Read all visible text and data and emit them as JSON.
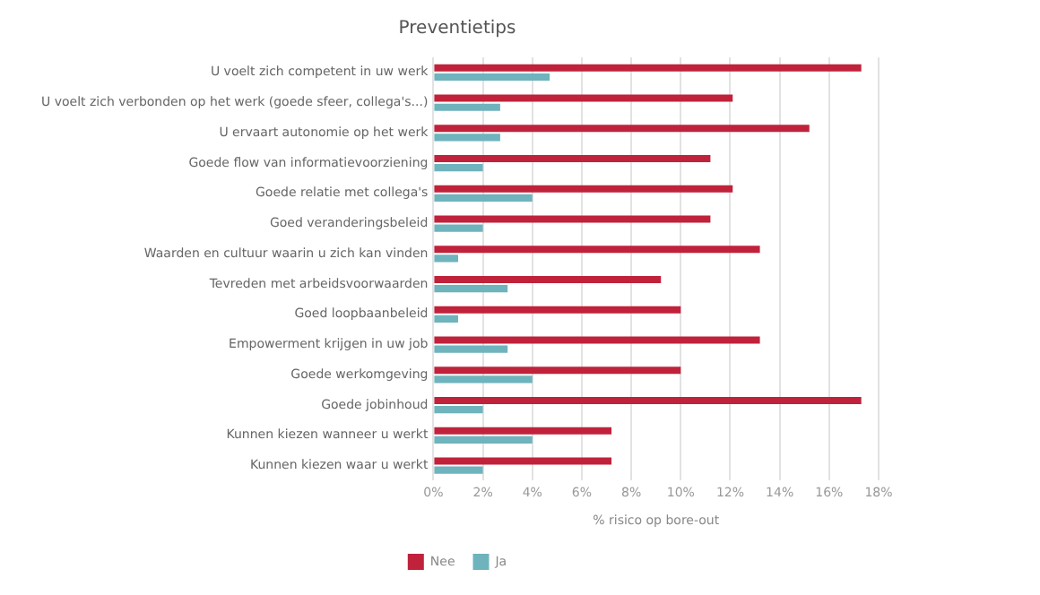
{
  "chart_data": {
    "type": "bar",
    "orientation": "horizontal",
    "title": "Preventietips",
    "xlabel": "% risico op bore-out",
    "categories": [
      "U voelt zich competent in uw werk",
      "U voelt zich verbonden op het werk (goede sfeer, collega's...)",
      "U ervaart autonomie op het werk",
      "Goede flow van informatievoorziening",
      "Goede relatie met collega's",
      "Goed veranderingsbeleid",
      "Waarden en cultuur waarin u zich kan vinden",
      "Tevreden met arbeidsvoorwaarden",
      "Goed loopbaanbeleid",
      "Empowerment krijgen in uw job",
      "Goede werkomgeving",
      "Goede jobinhoud",
      "Kunnen kiezen wanneer u werkt",
      "Kunnen kiezen waar u werkt"
    ],
    "series": [
      {
        "name": "Nee",
        "color": "#c0223b",
        "values": [
          17.3,
          12.1,
          15.2,
          11.2,
          12.1,
          11.2,
          13.2,
          9.2,
          10,
          13.2,
          10,
          17.3,
          7.2,
          7.2
        ]
      },
      {
        "name": "Ja",
        "color": "#6fb3bd",
        "values": [
          4.7,
          2.7,
          2.7,
          2,
          4,
          2,
          1,
          3,
          1,
          3,
          4,
          2,
          4,
          2
        ]
      }
    ],
    "xlim": [
      0,
      18
    ],
    "xticks": [
      {
        "value": 0,
        "label": "0%"
      },
      {
        "value": 2,
        "label": "2%"
      },
      {
        "value": 4,
        "label": "4%"
      },
      {
        "value": 6,
        "label": "6%"
      },
      {
        "value": 8,
        "label": "8%"
      },
      {
        "value": 10,
        "label": "10%"
      },
      {
        "value": 12,
        "label": "12%"
      },
      {
        "value": 14,
        "label": "14%"
      },
      {
        "value": 16,
        "label": "16%"
      },
      {
        "value": 18,
        "label": "18%"
      }
    ],
    "grid": "x",
    "legend": "bottom"
  }
}
